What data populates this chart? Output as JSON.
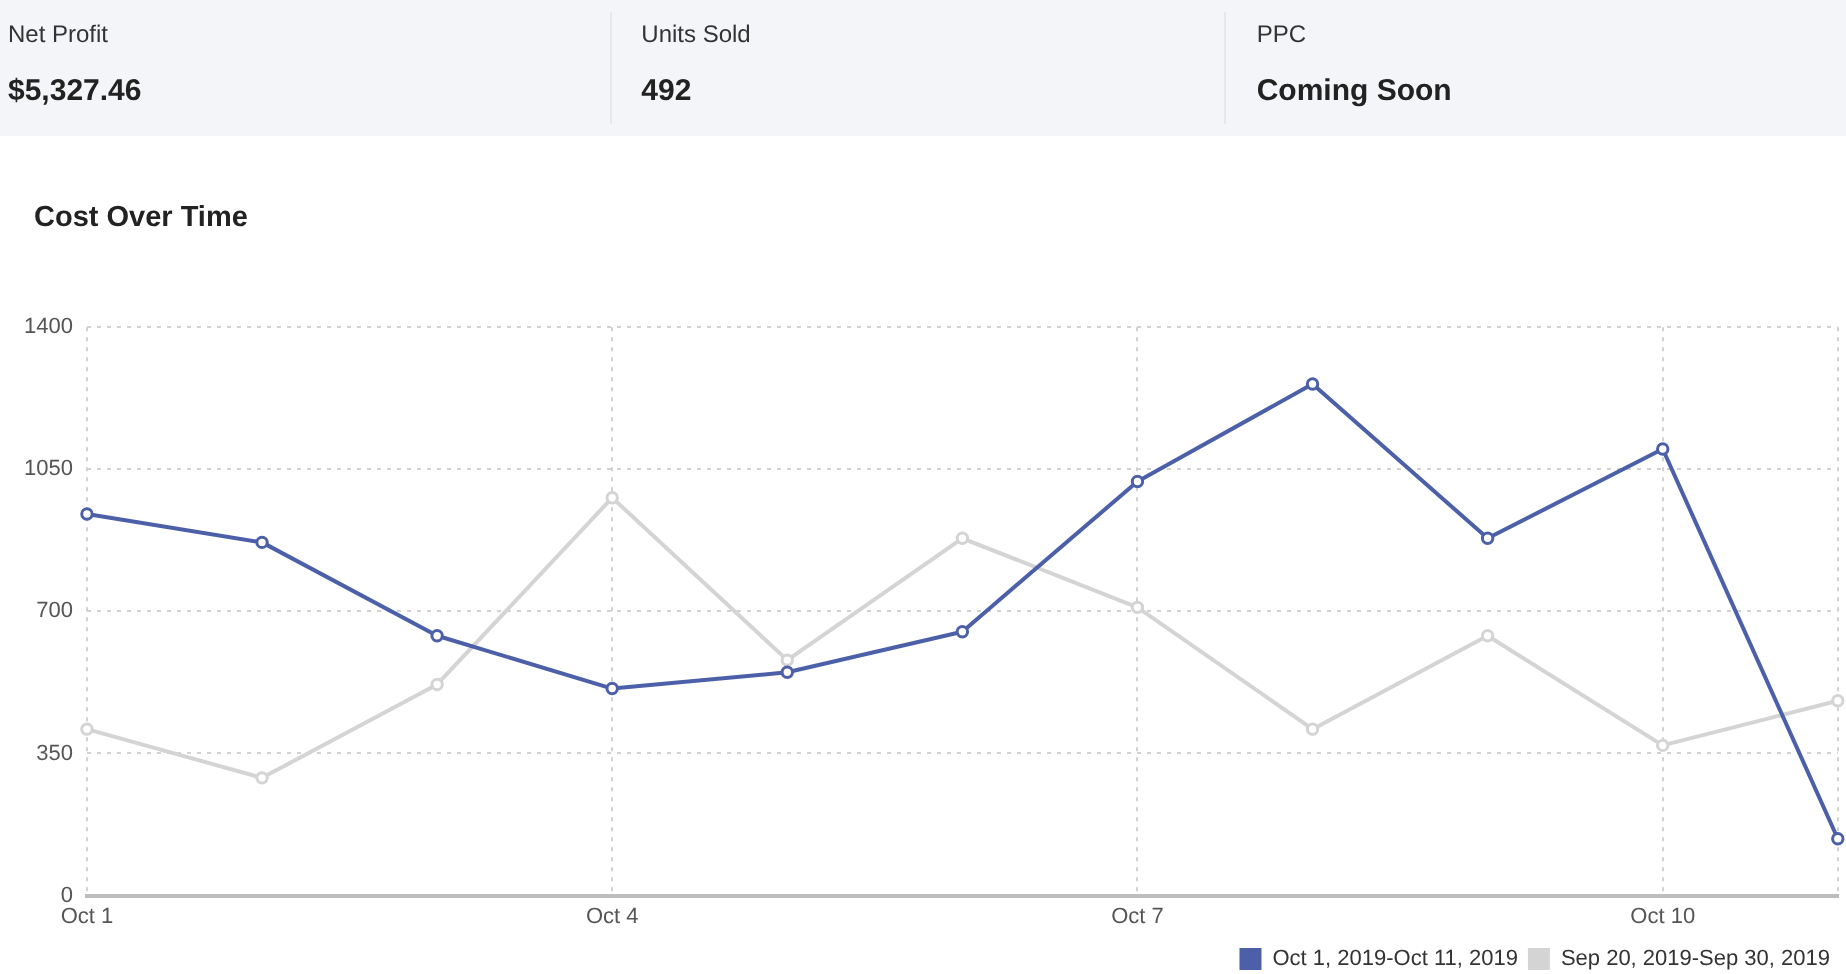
{
  "chart_data": [
    {
      "type": "other",
      "annotations": [
        "Net Profit",
        "$5,327.46",
        "Units Sold",
        "492",
        "PPC",
        "Coming Soon"
      ]
    },
    {
      "type": "line",
      "title": "Cost Over Time",
      "categories": [
        "Oct 1",
        null,
        null,
        "Oct 4",
        null,
        null,
        "Oct 7",
        null,
        null,
        "Oct 10",
        null
      ],
      "series": [
        {
          "name": "Oct 1, 2019-Oct 11, 2019",
          "color": "#4b60a8",
          "values": [
            940,
            870,
            640,
            510,
            550,
            650,
            1020,
            1260,
            880,
            1100,
            140
          ]
        },
        {
          "name": "Sep 20, 2019-Sep 30, 2019",
          "color": "#d4d4d4",
          "values": [
            410,
            290,
            520,
            980,
            580,
            880,
            710,
            410,
            640,
            370,
            480
          ]
        }
      ],
      "ylim": [
        0,
        1400
      ],
      "yticks": [
        0,
        350,
        700,
        1050,
        1400
      ],
      "grid": true,
      "legend": "bottom right",
      "marker": "circle",
      "line_style": "solid"
    }
  ]
}
